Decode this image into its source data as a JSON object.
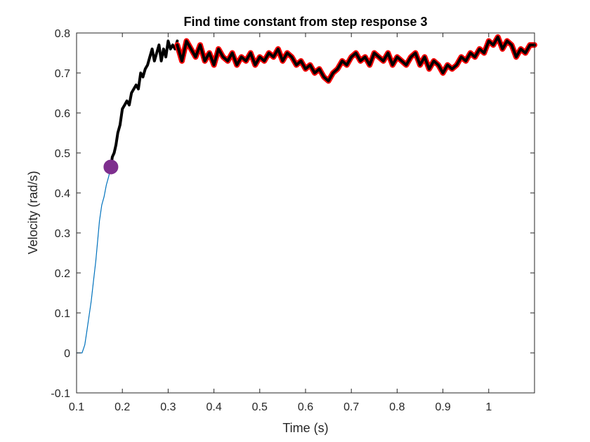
{
  "chart_data": {
    "type": "line",
    "title": "Find time constant from step response 3",
    "xlabel": "Time (s)",
    "ylabel": "Velocity (rad/s)",
    "xlim": [
      0.1,
      1.1
    ],
    "ylim": [
      -0.1,
      0.8
    ],
    "xticks": [
      0.1,
      0.2,
      0.3,
      0.4,
      0.5,
      0.6,
      0.7,
      0.8,
      0.9,
      1.0
    ],
    "xtick_labels": [
      "0.1",
      "0.2",
      "0.3",
      "0.4",
      "0.5",
      "0.6",
      "0.7",
      "0.8",
      "0.9",
      "1"
    ],
    "yticks": [
      -0.1,
      0,
      0.1,
      0.2,
      0.3,
      0.4,
      0.5,
      0.6,
      0.7,
      0.8
    ],
    "ytick_labels": [
      "-0.1",
      "0",
      "0.1",
      "0.2",
      "0.3",
      "0.4",
      "0.5",
      "0.6",
      "0.7",
      "0.8"
    ],
    "grid": false,
    "series": [
      {
        "role": "raw-rise",
        "color": "#0072BD",
        "x": [
          0.1,
          0.112,
          0.115,
          0.118,
          0.122,
          0.127,
          0.132,
          0.137,
          0.142,
          0.146,
          0.15,
          0.155,
          0.16,
          0.165,
          0.17,
          0.175
        ],
        "y": [
          0.0,
          0.0,
          0.01,
          0.02,
          0.05,
          0.09,
          0.13,
          0.18,
          0.23,
          0.28,
          0.33,
          0.37,
          0.39,
          0.42,
          0.44,
          0.465
        ]
      },
      {
        "role": "highlighted-response",
        "color": "#000000",
        "x": [
          0.175,
          0.178,
          0.182,
          0.186,
          0.19,
          0.195,
          0.2,
          0.205,
          0.21,
          0.215,
          0.22,
          0.225,
          0.23,
          0.235,
          0.24,
          0.245,
          0.25,
          0.255,
          0.26,
          0.265,
          0.27,
          0.275,
          0.28,
          0.285,
          0.29,
          0.295,
          0.3,
          0.305,
          0.31,
          0.315,
          0.32
        ],
        "y": [
          0.465,
          0.49,
          0.5,
          0.52,
          0.55,
          0.57,
          0.61,
          0.62,
          0.63,
          0.62,
          0.65,
          0.66,
          0.67,
          0.66,
          0.7,
          0.69,
          0.71,
          0.72,
          0.74,
          0.76,
          0.73,
          0.75,
          0.77,
          0.73,
          0.76,
          0.74,
          0.78,
          0.76,
          0.77,
          0.76,
          0.78
        ]
      },
      {
        "role": "steady-state",
        "color": "#000000",
        "outline_color": "#FF0000",
        "x": [
          0.32,
          0.33,
          0.34,
          0.35,
          0.36,
          0.37,
          0.38,
          0.39,
          0.4,
          0.41,
          0.42,
          0.43,
          0.44,
          0.45,
          0.46,
          0.47,
          0.48,
          0.49,
          0.5,
          0.51,
          0.52,
          0.53,
          0.54,
          0.55,
          0.56,
          0.57,
          0.58,
          0.59,
          0.6,
          0.61,
          0.62,
          0.63,
          0.64,
          0.65,
          0.66,
          0.67,
          0.68,
          0.69,
          0.7,
          0.71,
          0.72,
          0.73,
          0.74,
          0.75,
          0.76,
          0.77,
          0.78,
          0.79,
          0.8,
          0.81,
          0.82,
          0.83,
          0.84,
          0.85,
          0.86,
          0.87,
          0.88,
          0.89,
          0.9,
          0.91,
          0.92,
          0.93,
          0.94,
          0.95,
          0.96,
          0.97,
          0.98,
          0.99,
          1.0,
          1.01,
          1.02,
          1.03,
          1.04,
          1.05,
          1.06,
          1.07,
          1.08,
          1.09,
          1.1
        ],
        "y": [
          0.77,
          0.73,
          0.78,
          0.76,
          0.74,
          0.77,
          0.73,
          0.75,
          0.72,
          0.76,
          0.74,
          0.73,
          0.75,
          0.72,
          0.74,
          0.73,
          0.75,
          0.72,
          0.74,
          0.73,
          0.75,
          0.74,
          0.76,
          0.73,
          0.75,
          0.74,
          0.72,
          0.73,
          0.71,
          0.72,
          0.7,
          0.71,
          0.69,
          0.68,
          0.7,
          0.71,
          0.73,
          0.72,
          0.74,
          0.75,
          0.73,
          0.74,
          0.72,
          0.75,
          0.74,
          0.73,
          0.75,
          0.72,
          0.74,
          0.73,
          0.72,
          0.74,
          0.75,
          0.72,
          0.74,
          0.71,
          0.73,
          0.72,
          0.7,
          0.72,
          0.71,
          0.72,
          0.74,
          0.73,
          0.75,
          0.74,
          0.76,
          0.75,
          0.78,
          0.77,
          0.79,
          0.76,
          0.78,
          0.77,
          0.74,
          0.76,
          0.75,
          0.77,
          0.77
        ]
      }
    ],
    "marker": {
      "x": 0.175,
      "y": 0.465,
      "color": "#7E2F8E"
    }
  }
}
